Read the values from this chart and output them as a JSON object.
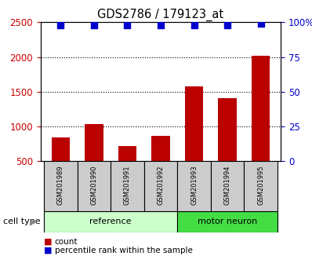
{
  "title": "GDS2786 / 179123_at",
  "samples": [
    "GSM201989",
    "GSM201990",
    "GSM201991",
    "GSM201992",
    "GSM201993",
    "GSM201994",
    "GSM201995"
  ],
  "bar_values": [
    840,
    1040,
    720,
    870,
    1580,
    1410,
    2020
  ],
  "percentile_values": [
    98,
    98,
    98,
    98,
    98,
    98,
    99
  ],
  "bar_color": "#bb0000",
  "dot_color": "#0000cc",
  "groups": [
    {
      "label": "reference",
      "start": 0,
      "end": 3,
      "color": "#ccffcc"
    },
    {
      "label": "motor neuron",
      "start": 4,
      "end": 6,
      "color": "#44dd44"
    }
  ],
  "ylim_left": [
    500,
    2500
  ],
  "ylim_right": [
    0,
    100
  ],
  "yticks_left": [
    500,
    1000,
    1500,
    2000,
    2500
  ],
  "yticks_right": [
    0,
    25,
    50,
    75,
    100
  ],
  "ylabel_left_color": "#cc0000",
  "ylabel_right_color": "#0000cc",
  "grid_dotted_values": [
    1000,
    1500,
    2000
  ],
  "background_color": "#ffffff",
  "label_count": "count",
  "label_percentile": "percentile rank within the sample",
  "cell_type_label": "cell type",
  "box_bg_color": "#cccccc",
  "ref_group_color": "#ccffcc",
  "motor_group_color": "#44dd44"
}
